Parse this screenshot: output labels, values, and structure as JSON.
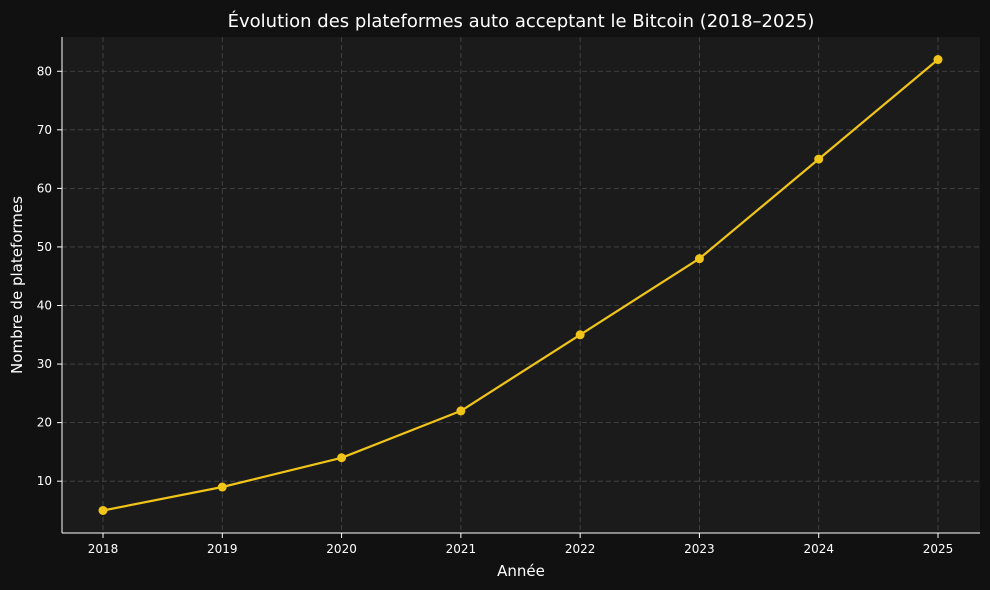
{
  "chart_data": {
    "type": "line",
    "title": "Évolution des plateformes auto acceptant le Bitcoin (2018–2025)",
    "xlabel": "Année",
    "ylabel": "Nombre de plateformes",
    "x": [
      "2018",
      "2019",
      "2020",
      "2021",
      "2022",
      "2023",
      "2024",
      "2025"
    ],
    "series": [
      {
        "values": [
          5,
          9,
          14,
          22,
          35,
          48,
          65,
          82
        ],
        "color": "#f0c419"
      }
    ],
    "y_ticks": [
      "10",
      "20",
      "30",
      "40",
      "50",
      "60",
      "70",
      "80"
    ],
    "ylim": [
      1.15,
      85.85
    ],
    "grid": true,
    "legend": "none",
    "colors": {
      "figure_background": "#111111",
      "plot_background": "#1b1b1b",
      "grid": "#4a4a4a",
      "axis": "#ffffff",
      "text": "#ffffff"
    }
  }
}
